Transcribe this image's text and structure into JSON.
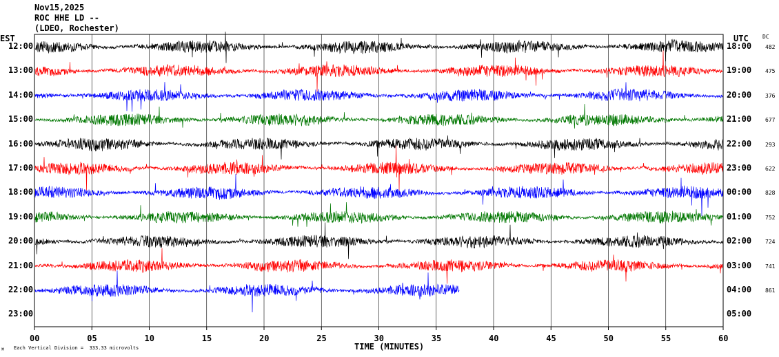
{
  "header": {
    "date": "Nov15,2025",
    "station": "ROC HHE LD --",
    "location": "(LDEO, Rochester)"
  },
  "left_axis_title": "EST",
  "right_axis_title": "UTC",
  "dc_title": "DC",
  "footer_note": "Each Vertical Division =  333.33 microvolts",
  "chart_data": {
    "type": "line",
    "title": "Nov15,2025 ROC HHE LD -- (LDEO, Rochester)",
    "xlabel": "TIME (MINUTES)",
    "xlim": [
      0,
      60
    ],
    "x_ticks": [
      "00",
      "05",
      "10",
      "15",
      "20",
      "25",
      "30",
      "35",
      "40",
      "45",
      "50",
      "55",
      "60"
    ],
    "grid_x": true,
    "rows": [
      {
        "est": "12:00",
        "utc": "18:00",
        "dc": "482",
        "color": "#000000",
        "end_minute": 60
      },
      {
        "est": "13:00",
        "utc": "19:00",
        "dc": "475",
        "color": "#ff0000",
        "end_minute": 60
      },
      {
        "est": "14:00",
        "utc": "20:00",
        "dc": "376",
        "color": "#0000ff",
        "end_minute": 60
      },
      {
        "est": "15:00",
        "utc": "21:00",
        "dc": "677",
        "color": "#007700",
        "end_minute": 60
      },
      {
        "est": "16:00",
        "utc": "22:00",
        "dc": "293",
        "color": "#000000",
        "end_minute": 60
      },
      {
        "est": "17:00",
        "utc": "23:00",
        "dc": "622",
        "color": "#ff0000",
        "end_minute": 60
      },
      {
        "est": "18:00",
        "utc": "00:00",
        "dc": "828",
        "color": "#0000ff",
        "end_minute": 60
      },
      {
        "est": "19:00",
        "utc": "01:00",
        "dc": "752",
        "color": "#007700",
        "end_minute": 60
      },
      {
        "est": "20:00",
        "utc": "02:00",
        "dc": "724",
        "color": "#000000",
        "end_minute": 60
      },
      {
        "est": "21:00",
        "utc": "03:00",
        "dc": "741",
        "color": "#ff0000",
        "end_minute": 60
      },
      {
        "est": "22:00",
        "utc": "04:00",
        "dc": "861",
        "color": "#0000ff",
        "end_minute": 37
      },
      {
        "est": "23:00",
        "utc": "05:00",
        "dc": "",
        "color": "#000000",
        "end_minute": 0
      }
    ]
  }
}
